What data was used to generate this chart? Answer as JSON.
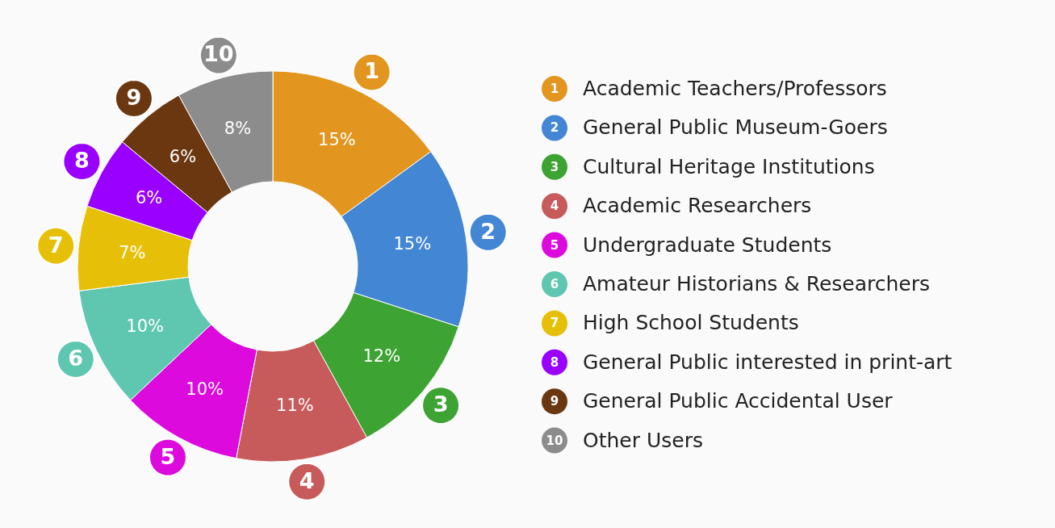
{
  "chart_data": {
    "type": "donut",
    "categories": [
      "Academic Teachers/Professors",
      "General Public Museum-Goers",
      "Cultural Heritage Institutions",
      "Academic Researchers",
      "Undergraduate Students",
      "Amateur Historians & Researchers",
      "High School Students",
      "General Public interested in print-art",
      "General Public Accidental User",
      "Other Users"
    ],
    "values": [
      15,
      15,
      12,
      11,
      10,
      10,
      7,
      6,
      6,
      8
    ],
    "colors": [
      "#e3961f",
      "#4286d4",
      "#3da333",
      "#c75a5a",
      "#dc0adc",
      "#5fc6b0",
      "#e6c008",
      "#9900ff",
      "#6b3710",
      "#8c8c8c"
    ],
    "value_labels": [
      "15%",
      "15%",
      "12%",
      "11%",
      "10%",
      "10%",
      "7%",
      "6%",
      "6%",
      "8%"
    ],
    "annotations": [
      {
        "text": "1",
        "x": "Academic Teachers/Professors"
      },
      {
        "text": "2",
        "x": "General Public Museum-Goers"
      },
      {
        "text": "3",
        "x": "Cultural Heritage Institutions"
      },
      {
        "text": "4",
        "x": "Academic Researchers"
      },
      {
        "text": "5",
        "x": "Undergraduate Students"
      },
      {
        "text": "6",
        "x": "Amateur Historians & Researchers"
      },
      {
        "text": "7",
        "x": "High School Students"
      },
      {
        "text": "8",
        "x": "General Public interested in print-art"
      },
      {
        "text": "9",
        "x": "General Public Accidental User"
      },
      {
        "text": "10",
        "x": "Other Users"
      }
    ],
    "legend": "right"
  }
}
